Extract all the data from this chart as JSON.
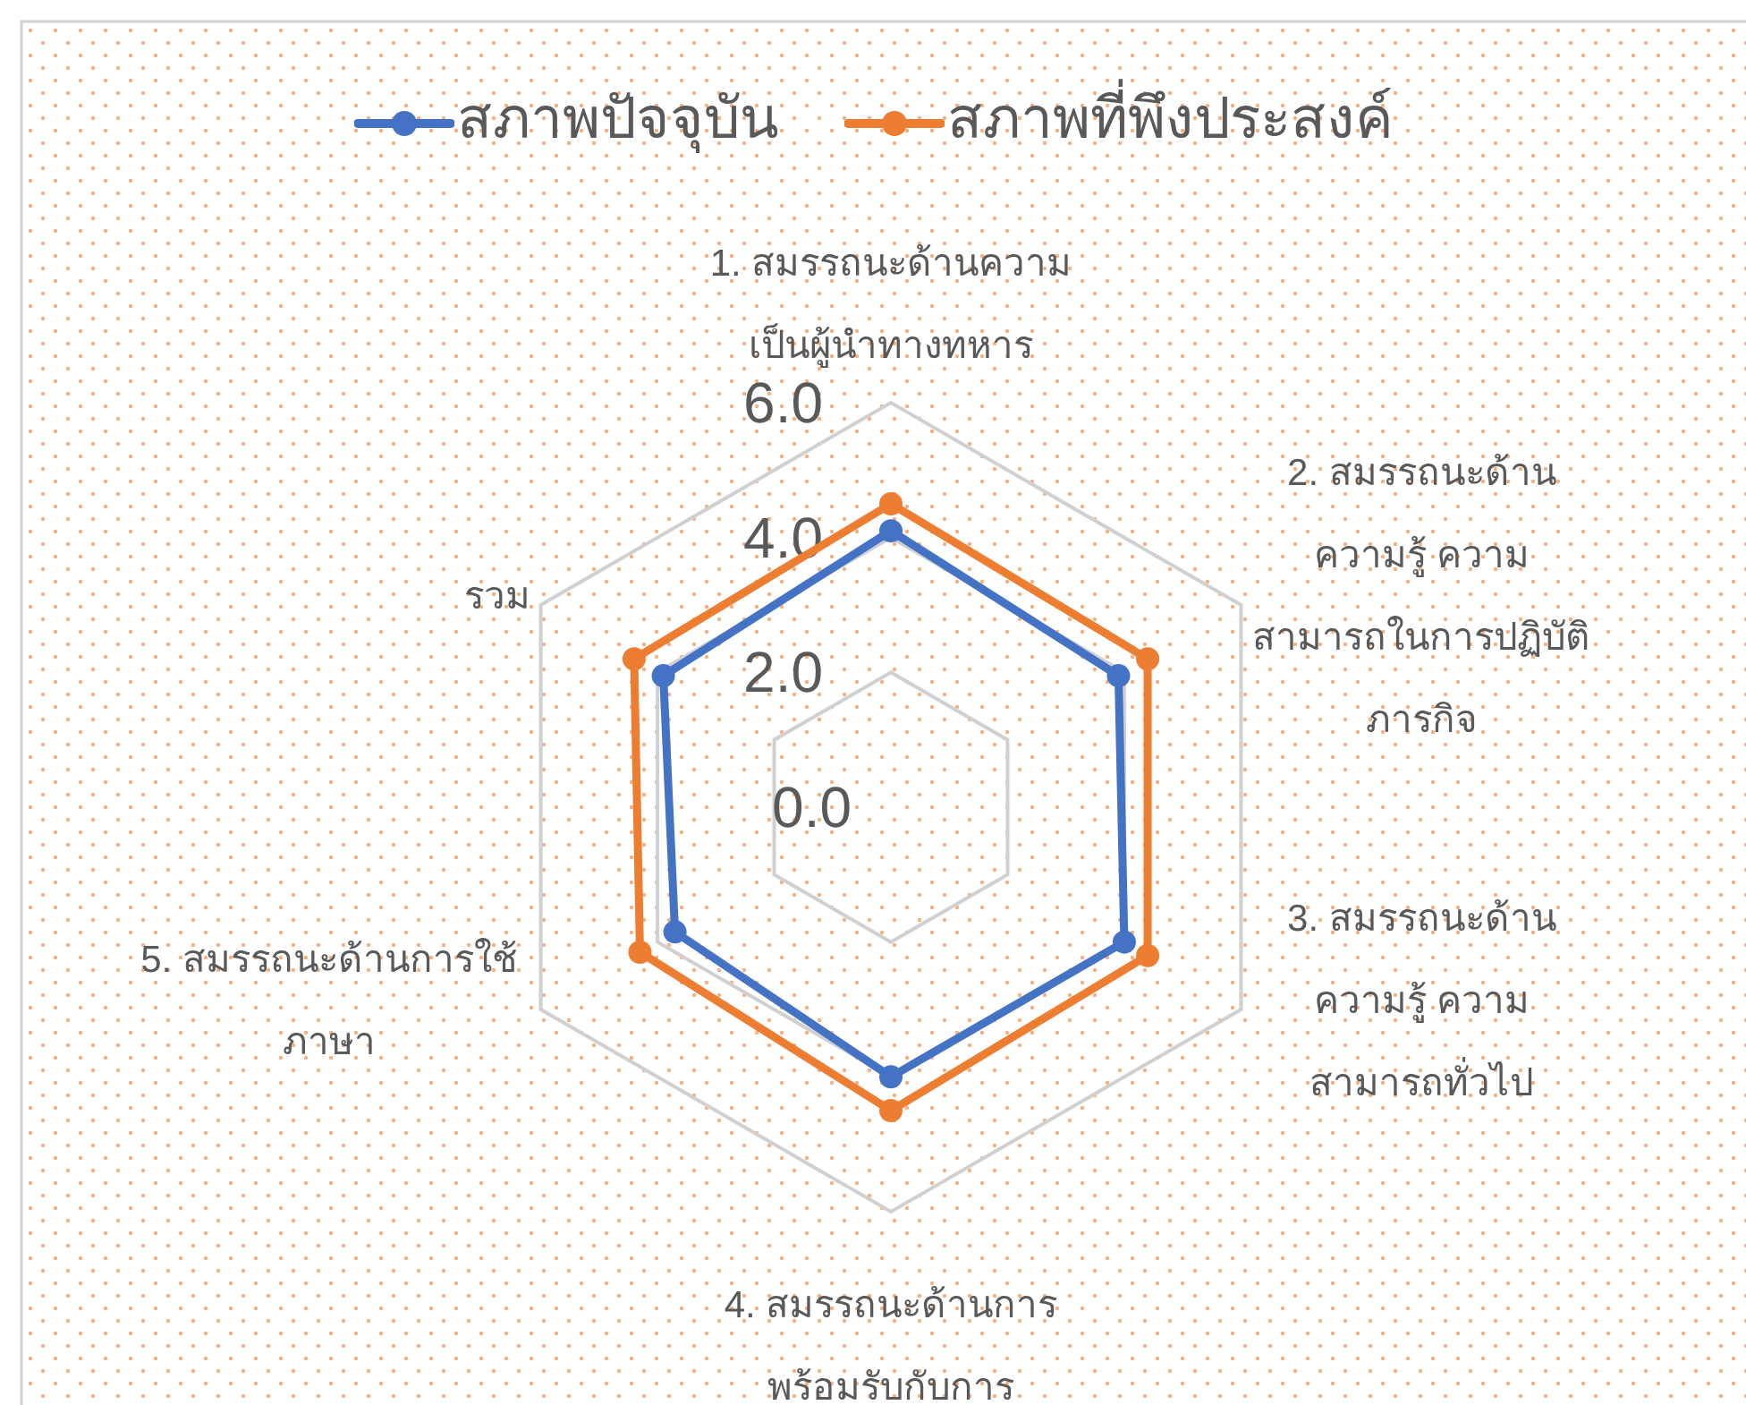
{
  "chart_data": {
    "type": "radar",
    "categories": [
      "1. สมรรถนะด้านความเป็นผู้นำทางทหาร",
      "2. สมรรถนะด้านความรู้ ความสามารถในการปฏิบัติภารกิจ",
      "3. สมรรถนะด้านความรู้ ความสามารถทั่วไป",
      "4. สมรรถนะด้านการพร้อมรับกับการ",
      "5. สมรรถนะด้านการใช้ภาษา",
      "รวม"
    ],
    "series": [
      {
        "name": "สภาพปัจจุบัน",
        "color": "#4472c4",
        "values": [
          4.1,
          3.9,
          4.0,
          4.0,
          3.7,
          3.9
        ]
      },
      {
        "name": "สภาพที่พึงประสงค์",
        "color": "#ed7d31",
        "values": [
          4.5,
          4.4,
          4.4,
          4.5,
          4.3,
          4.4
        ]
      }
    ],
    "ylim": [
      0,
      6
    ],
    "yticks": [
      {
        "value": 0,
        "label": "0.0"
      },
      {
        "value": 2,
        "label": "2.0"
      },
      {
        "value": 4,
        "label": "4.0"
      },
      {
        "value": 6,
        "label": "6.0"
      }
    ],
    "grid": true,
    "legend": "top",
    "marker": "circle"
  }
}
